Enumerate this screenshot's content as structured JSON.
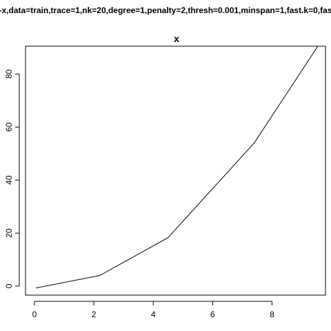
{
  "figure_title": "-x,data=train,trace=1,nk=20,degree=1,penalty=2,thresh=0.001,minspan=1,fast.k=0,fas",
  "chart_data": {
    "type": "line",
    "title": "x",
    "xlabel": "",
    "ylabel": "",
    "xlim": [
      -0.3,
      9.8
    ],
    "ylim": [
      -3.4,
      90.5
    ],
    "x_ticks": [
      0,
      2,
      4,
      6,
      8
    ],
    "x_tick_labels": [
      "0",
      "2",
      "4",
      "6",
      "8"
    ],
    "y_ticks": [
      0,
      20,
      40,
      60,
      80
    ],
    "y_tick_labels": [
      "0",
      "20",
      "40",
      "60",
      "80"
    ],
    "grid": false,
    "legend": "none",
    "series": [
      {
        "x": [
          0.05,
          2.2,
          4.5,
          7.4,
          9.6
        ],
        "y": [
          -0.7,
          4.0,
          18.3,
          54.0,
          91.5
        ]
      }
    ],
    "line_color": "#000000",
    "axis_color": "#000000",
    "background_color": "#ffffff"
  }
}
